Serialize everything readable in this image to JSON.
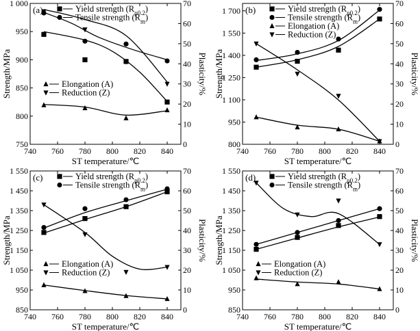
{
  "chart_data": [
    {
      "type": "line",
      "panel_label": "(a)",
      "xlabel": "ST temperature/℃",
      "ylabel_left": "Strength/MPa",
      "ylabel_right": "Plasticity/%",
      "xlim": [
        740,
        850
      ],
      "ylim_left": [
        750,
        1000
      ],
      "ylim_right": [
        0,
        70
      ],
      "xticks": [
        "740",
        "760",
        "780",
        "800",
        "820",
        "840"
      ],
      "yticks_left": [
        "750",
        "800",
        "850",
        "900",
        "950",
        "1 000"
      ],
      "yticks_right": [
        "0",
        "10",
        "20",
        "30",
        "40",
        "50",
        "60",
        "70"
      ],
      "legend_top": [
        {
          "series": 0,
          "text": "Yield strength (R",
          "sub": "p0.2",
          "post": ")"
        },
        {
          "series": 1,
          "text": "Tensile strength (R",
          "sub": "m",
          "post": ")"
        }
      ],
      "legend_bottom": [
        {
          "series": 2,
          "text": "Elongation (A)"
        },
        {
          "series": 3,
          "text": "Reduction (Z)"
        }
      ],
      "series": [
        {
          "name": "Yield strength (Rp0.2)",
          "axis": "left",
          "marker": "square",
          "x": [
            750,
            780,
            810,
            840
          ],
          "y": [
            945,
            900,
            897,
            825
          ],
          "fit": [
            [
              750,
              950
            ],
            [
              780,
              935
            ],
            [
              800,
              915
            ],
            [
              820,
              878
            ],
            [
              840,
              826
            ]
          ]
        },
        {
          "name": "Tensile strength (Rm)",
          "axis": "left",
          "marker": "circle",
          "x": [
            750,
            780,
            810,
            840
          ],
          "y": [
            983,
            933,
            928,
            898
          ],
          "fit": [
            [
              750,
              984
            ],
            [
              770,
              965
            ],
            [
              790,
              940
            ],
            [
              815,
              918
            ],
            [
              840,
              900
            ]
          ]
        },
        {
          "name": "Elongation (A)",
          "axis": "right",
          "marker": "triangle-up",
          "x": [
            750,
            780,
            810,
            840
          ],
          "y": [
            19.5,
            18,
            13,
            17
          ],
          "fit": [
            [
              750,
              19.8
            ],
            [
              780,
              18.5
            ],
            [
              810,
              14.5
            ],
            [
              840,
              16.7
            ]
          ]
        },
        {
          "name": "Reduction (Z)",
          "axis": "right",
          "marker": "triangle-down",
          "x": [
            750,
            780,
            810,
            840
          ],
          "y": [
            66,
            57,
            41,
            30
          ],
          "fit": [
            [
              750,
              67
            ],
            [
              780,
              62
            ],
            [
              810,
              54
            ],
            [
              840,
              31
            ]
          ]
        }
      ]
    },
    {
      "type": "line",
      "panel_label": "(b)",
      "xlabel": "ST temperature/℃",
      "ylabel_left": "Strength/MPa",
      "ylabel_right": "Plasticity/%",
      "xlim": [
        740,
        850
      ],
      "ylim_left": [
        800,
        1750
      ],
      "ylim_right": [
        0,
        70
      ],
      "xticks": [
        "740",
        "760",
        "780",
        "800",
        "820",
        "840"
      ],
      "yticks_left": [
        "800",
        "950",
        "1 100",
        "1 250",
        "1 400",
        "1 550",
        "1 700"
      ],
      "yticks_right": [
        "0",
        "10",
        "20",
        "30",
        "40",
        "50",
        "60",
        "70"
      ],
      "legend_top": [
        {
          "series": 0,
          "text": "Yield strength (R",
          "sub": "p0.2",
          "post": ")"
        },
        {
          "series": 1,
          "text": "Tensile strength (R",
          "sub": "m",
          "post": ")"
        },
        {
          "series": 2,
          "text": "Elongation (A)"
        },
        {
          "series": 3,
          "text": "Reduction (Z)"
        }
      ],
      "legend_bottom": [],
      "series": [
        {
          "name": "Yield strength (Rp0.2)",
          "axis": "left",
          "marker": "square",
          "x": [
            750,
            780,
            810,
            840
          ],
          "y": [
            1320,
            1360,
            1435,
            1645
          ],
          "fit": [
            [
              750,
              1320
            ],
            [
              780,
              1370
            ],
            [
              810,
              1460
            ],
            [
              840,
              1645
            ]
          ]
        },
        {
          "name": "Tensile strength (Rm)",
          "axis": "left",
          "marker": "circle",
          "x": [
            750,
            780,
            810,
            840
          ],
          "y": [
            1370,
            1420,
            1510,
            1710
          ],
          "fit": [
            [
              750,
              1365
            ],
            [
              780,
              1410
            ],
            [
              810,
              1500
            ],
            [
              840,
              1705
            ]
          ]
        },
        {
          "name": "Elongation (A)",
          "axis": "right",
          "marker": "triangle-up",
          "x": [
            750,
            780,
            810,
            840
          ],
          "y": [
            13.5,
            8.5,
            7.5,
            1.5
          ],
          "fit": [
            [
              750,
              13.5
            ],
            [
              780,
              9.5
            ],
            [
              810,
              7.5
            ],
            [
              840,
              1.5
            ]
          ]
        },
        {
          "name": "Reduction (Z)",
          "axis": "right",
          "marker": "triangle-down",
          "x": [
            750,
            780,
            810,
            840
          ],
          "y": [
            50,
            35,
            24,
            1.5
          ],
          "fit": [
            [
              750,
              50
            ],
            [
              780,
              37
            ],
            [
              810,
              22
            ],
            [
              840,
              1.5
            ]
          ]
        }
      ]
    },
    {
      "type": "line",
      "panel_label": "(c)",
      "xlabel": "ST temperature/℃",
      "ylabel_left": "Strength/MPa",
      "ylabel_right": "Plasticity/%",
      "xlim": [
        740,
        850
      ],
      "ylim_left": [
        850,
        1550
      ],
      "ylim_right": [
        0,
        70
      ],
      "xticks": [
        "740",
        "760",
        "780",
        "800",
        "820",
        "840"
      ],
      "yticks_left": [
        "850",
        "950",
        "1 050",
        "1 150",
        "1 250",
        "1 350",
        "1 450",
        "1 550"
      ],
      "yticks_right": [
        "0",
        "10",
        "20",
        "30",
        "40",
        "50",
        "60",
        "70"
      ],
      "legend_top": [
        {
          "series": 0,
          "text": "Yield strength (R",
          "sub": "p0.2",
          "post": ")"
        },
        {
          "series": 1,
          "text": "Tensile strength (R",
          "sub": "m",
          "post": ")"
        }
      ],
      "legend_bottom": [
        {
          "series": 2,
          "text": "Elongation (A)"
        },
        {
          "series": 3,
          "text": "Reduction (Z)"
        }
      ],
      "series": [
        {
          "name": "Yield strength (Rp0.2)",
          "axis": "left",
          "marker": "square",
          "x": [
            750,
            780,
            810,
            840
          ],
          "y": [
            1240,
            1310,
            1370,
            1445
          ],
          "fit": [
            [
              750,
              1237
            ],
            [
              780,
              1305
            ],
            [
              810,
              1370
            ],
            [
              840,
              1445
            ]
          ]
        },
        {
          "name": "Tensile strength (Rm)",
          "axis": "left",
          "marker": "circle",
          "x": [
            750,
            780,
            810,
            840
          ],
          "y": [
            1265,
            1360,
            1405,
            1460
          ],
          "fit": [
            [
              750,
              1262
            ],
            [
              780,
              1340
            ],
            [
              810,
              1400
            ],
            [
              840,
              1458
            ]
          ]
        },
        {
          "name": "Elongation (A)",
          "axis": "right",
          "marker": "triangle-up",
          "x": [
            750,
            780,
            810,
            840
          ],
          "y": [
            12.5,
            9.5,
            7,
            5.5
          ],
          "fit": [
            [
              750,
              12.5
            ],
            [
              780,
              9.7
            ],
            [
              810,
              7.2
            ],
            [
              840,
              5.5
            ]
          ]
        },
        {
          "name": "Reduction (Z)",
          "axis": "right",
          "marker": "triangle-down",
          "x": [
            750,
            780,
            810,
            840
          ],
          "y": [
            53,
            38,
            19,
            21.5
          ],
          "fit": [
            [
              750,
              53
            ],
            [
              780,
              39
            ],
            [
              800,
              27
            ],
            [
              820,
              20.5
            ],
            [
              840,
              21.5
            ]
          ]
        }
      ]
    },
    {
      "type": "line",
      "panel_label": "(d)",
      "xlabel": "ST temperature/℃",
      "ylabel_left": "Strength/MPa",
      "ylabel_right": "Plasticity/%",
      "xlim": [
        740,
        850
      ],
      "ylim_left": [
        850,
        1550
      ],
      "ylim_right": [
        0,
        70
      ],
      "xticks": [
        "740",
        "760",
        "780",
        "800",
        "820",
        "840"
      ],
      "yticks_left": [
        "850",
        "950",
        "1 050",
        "1 150",
        "1 250",
        "1 350",
        "1 450",
        "1 550"
      ],
      "yticks_right": [
        "0",
        "10",
        "20",
        "30",
        "40",
        "50",
        "60",
        "70"
      ],
      "legend_top": [
        {
          "series": 0,
          "text": "Yield strength (R",
          "sub": "p0.2",
          "post": ")"
        },
        {
          "series": 1,
          "text": "Tensile strength (R",
          "sub": "m",
          "post": ")"
        }
      ],
      "legend_bottom": [
        {
          "series": 2,
          "text": "Elongation (A)"
        },
        {
          "series": 3,
          "text": "Reduction (Z)"
        }
      ],
      "series": [
        {
          "name": "Yield strength (Rp0.2)",
          "axis": "left",
          "marker": "square",
          "x": [
            750,
            780,
            810,
            840
          ],
          "y": [
            1155,
            1215,
            1275,
            1320
          ],
          "fit": [
            [
              750,
              1155
            ],
            [
              780,
              1212
            ],
            [
              810,
              1268
            ],
            [
              840,
              1318
            ]
          ]
        },
        {
          "name": "Tensile strength (Rm)",
          "axis": "left",
          "marker": "circle",
          "x": [
            750,
            780,
            810,
            840
          ],
          "y": [
            1180,
            1240,
            1300,
            1360
          ],
          "fit": [
            [
              750,
              1180
            ],
            [
              780,
              1240
            ],
            [
              810,
              1300
            ],
            [
              840,
              1360
            ]
          ]
        },
        {
          "name": "Elongation (A)",
          "axis": "right",
          "marker": "triangle-up",
          "x": [
            750,
            780,
            810,
            840
          ],
          "y": [
            16,
            13,
            14,
            10.5
          ],
          "fit": [
            [
              750,
              15.5
            ],
            [
              780,
              14
            ],
            [
              810,
              13
            ],
            [
              840,
              10.5
            ]
          ]
        },
        {
          "name": "Reduction (Z)",
          "axis": "right",
          "marker": "triangle-down",
          "x": [
            750,
            780,
            810,
            840
          ],
          "y": [
            64,
            48,
            55,
            33
          ],
          "fit": [
            [
              750,
              64
            ],
            [
              770,
              51
            ],
            [
              790,
              47
            ],
            [
              810,
              48.5
            ],
            [
              840,
              33
            ]
          ]
        }
      ]
    }
  ]
}
